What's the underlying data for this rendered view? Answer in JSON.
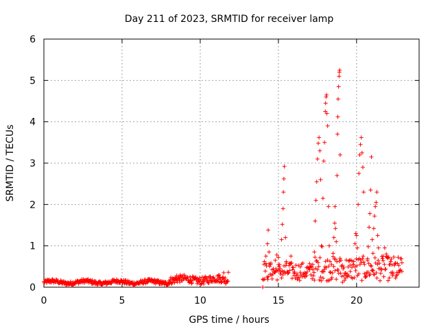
{
  "chart_data": {
    "type": "scatter",
    "title": "Day 211 of 2023, SRMTID for receiver lamp",
    "xlabel": "GPS time / hours",
    "ylabel": "SRMTID / TECUs",
    "xlim": [
      0,
      24
    ],
    "ylim": [
      0,
      6
    ],
    "x_ticks": [
      0,
      5,
      10,
      15,
      20
    ],
    "y_ticks": [
      0,
      1,
      2,
      3,
      4,
      5,
      6
    ],
    "grid": true,
    "marker": "+",
    "series_color": "#ff0000",
    "background_segments": [
      {
        "x_start": 0.0,
        "x_end": 8.0,
        "mean": 0.12,
        "amplitude": 0.05
      },
      {
        "x_start": 8.0,
        "x_end": 11.8,
        "mean": 0.18,
        "amplitude": 0.09
      }
    ],
    "points": [
      [
        8.5,
        0.28
      ],
      [
        8.7,
        0.22
      ],
      [
        9.4,
        0.16
      ],
      [
        10.2,
        0.18
      ],
      [
        10.8,
        0.22
      ],
      [
        11.2,
        0.3
      ],
      [
        11.5,
        0.35
      ],
      [
        11.8,
        0.36
      ],
      [
        14.0,
        0.0
      ],
      [
        14.1,
        0.62
      ],
      [
        14.2,
        0.75
      ],
      [
        14.3,
        1.05
      ],
      [
        14.35,
        1.38
      ],
      [
        14.4,
        0.85
      ],
      [
        14.5,
        0.55
      ],
      [
        14.6,
        0.42
      ],
      [
        14.8,
        0.65
      ],
      [
        14.9,
        0.78
      ],
      [
        15.0,
        0.72
      ],
      [
        15.05,
        0.4
      ],
      [
        15.1,
        0.45
      ],
      [
        15.2,
        1.15
      ],
      [
        15.25,
        1.52
      ],
      [
        15.3,
        1.9
      ],
      [
        15.32,
        2.3
      ],
      [
        15.35,
        2.62
      ],
      [
        15.38,
        2.92
      ],
      [
        15.45,
        1.2
      ],
      [
        15.5,
        0.62
      ],
      [
        15.6,
        0.35
      ],
      [
        15.7,
        0.58
      ],
      [
        15.8,
        0.75
      ],
      [
        15.9,
        0.48
      ],
      [
        16.0,
        0.34
      ],
      [
        16.2,
        0.32
      ],
      [
        16.4,
        0.36
      ],
      [
        16.6,
        0.3
      ],
      [
        16.8,
        0.28
      ],
      [
        17.0,
        0.42
      ],
      [
        17.1,
        0.5
      ],
      [
        17.2,
        0.55
      ],
      [
        17.3,
        0.85
      ],
      [
        17.35,
        1.6
      ],
      [
        17.4,
        2.1
      ],
      [
        17.45,
        2.55
      ],
      [
        17.5,
        3.1
      ],
      [
        17.55,
        3.48
      ],
      [
        17.6,
        3.62
      ],
      [
        17.65,
        3.3
      ],
      [
        17.7,
        2.6
      ],
      [
        17.75,
        1.0
      ],
      [
        17.8,
        0.98
      ],
      [
        17.85,
        2.15
      ],
      [
        17.9,
        3.05
      ],
      [
        17.95,
        3.5
      ],
      [
        18.0,
        4.25
      ],
      [
        18.02,
        4.45
      ],
      [
        18.05,
        4.6
      ],
      [
        18.08,
        4.65
      ],
      [
        18.1,
        4.2
      ],
      [
        18.15,
        3.9
      ],
      [
        18.2,
        1.95
      ],
      [
        18.25,
        1.0
      ],
      [
        18.3,
        0.62
      ],
      [
        18.4,
        0.55
      ],
      [
        18.5,
        0.82
      ],
      [
        18.55,
        1.2
      ],
      [
        18.6,
        1.55
      ],
      [
        18.62,
        1.95
      ],
      [
        18.65,
        1.42
      ],
      [
        18.7,
        1.1
      ],
      [
        18.75,
        2.7
      ],
      [
        18.78,
        3.7
      ],
      [
        18.8,
        4.12
      ],
      [
        18.82,
        4.55
      ],
      [
        18.85,
        4.85
      ],
      [
        18.88,
        5.1
      ],
      [
        18.9,
        5.2
      ],
      [
        18.92,
        5.25
      ],
      [
        18.95,
        3.2
      ],
      [
        19.0,
        0.65
      ],
      [
        19.1,
        0.12
      ],
      [
        19.2,
        0.28
      ],
      [
        19.3,
        0.22
      ],
      [
        19.4,
        0.32
      ],
      [
        19.5,
        0.28
      ],
      [
        19.6,
        0.38
      ],
      [
        19.7,
        0.48
      ],
      [
        19.8,
        0.55
      ],
      [
        19.9,
        1.05
      ],
      [
        19.95,
        1.3
      ],
      [
        20.0,
        1.25
      ],
      [
        20.05,
        0.95
      ],
      [
        20.1,
        2.0
      ],
      [
        20.15,
        2.75
      ],
      [
        20.2,
        3.2
      ],
      [
        20.25,
        3.45
      ],
      [
        20.3,
        3.62
      ],
      [
        20.35,
        3.25
      ],
      [
        20.4,
        2.9
      ],
      [
        20.45,
        2.3
      ],
      [
        20.5,
        0.55
      ],
      [
        20.6,
        0.32
      ],
      [
        20.7,
        0.65
      ],
      [
        20.75,
        0.98
      ],
      [
        20.8,
        1.45
      ],
      [
        20.85,
        1.78
      ],
      [
        20.9,
        2.35
      ],
      [
        20.95,
        3.15
      ],
      [
        21.0,
        1.15
      ],
      [
        21.05,
        0.82
      ],
      [
        21.1,
        1.42
      ],
      [
        21.15,
        1.72
      ],
      [
        21.2,
        1.95
      ],
      [
        21.25,
        2.05
      ],
      [
        21.3,
        2.3
      ],
      [
        21.35,
        1.25
      ],
      [
        21.4,
        0.95
      ],
      [
        21.5,
        0.45
      ],
      [
        21.6,
        0.42
      ],
      [
        21.7,
        0.75
      ],
      [
        21.8,
        0.95
      ],
      [
        21.9,
        0.8
      ],
      [
        22.0,
        0.72
      ],
      [
        22.1,
        0.55
      ],
      [
        22.2,
        0.35
      ],
      [
        22.3,
        0.28
      ],
      [
        22.5,
        0.22
      ],
      [
        22.6,
        0.3
      ],
      [
        22.7,
        0.35
      ],
      [
        22.8,
        0.42
      ],
      [
        22.9,
        0.38
      ]
    ],
    "noise_clusters": [
      {
        "x_start": 14.0,
        "x_end": 17.3,
        "mean": 0.38,
        "amplitude": 0.22
      },
      {
        "x_start": 17.3,
        "x_end": 22.9,
        "mean": 0.45,
        "amplitude": 0.3
      }
    ]
  }
}
